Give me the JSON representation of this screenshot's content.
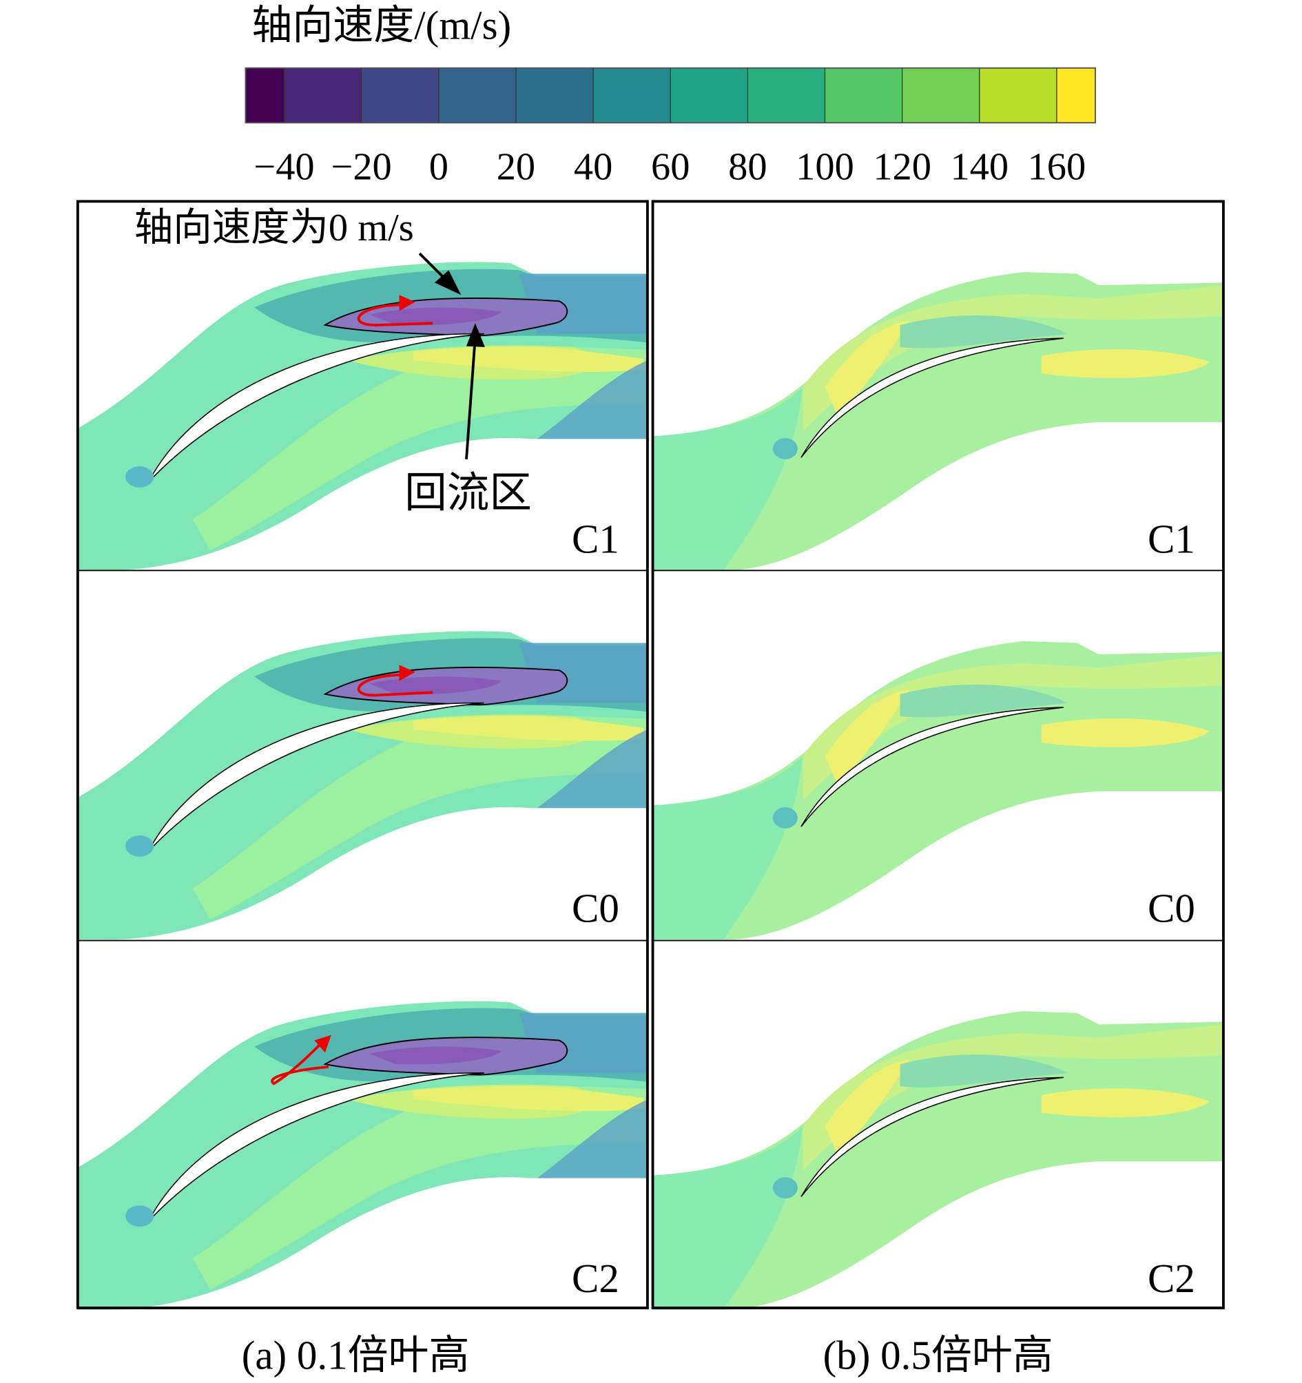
{
  "colorbar": {
    "title": "轴向速度/(m/s)",
    "lim": [
      -50,
      170
    ],
    "ticks": [
      {
        "value": -40,
        "label": "−40"
      },
      {
        "value": -20,
        "label": "−20"
      },
      0,
      20,
      40,
      60,
      80,
      100,
      120,
      140,
      160
    ],
    "colors": [
      "#440154",
      "#482677",
      "#404788",
      "#33638d",
      "#2d708e",
      "#238a8d",
      "#20a386",
      "#29af7f",
      "#55c667",
      "#73d055",
      "#b8de29",
      "#fde725"
    ]
  },
  "columns": [
    {
      "caption": "(a) 0.1倍叶高",
      "panels": [
        "C1",
        "C0",
        "C2"
      ]
    },
    {
      "caption": "(b) 0.5倍叶高",
      "panels": [
        "C1",
        "C0",
        "C2"
      ]
    }
  ],
  "annotations": [
    "轴向速度为0 m/s",
    "回流区"
  ]
}
